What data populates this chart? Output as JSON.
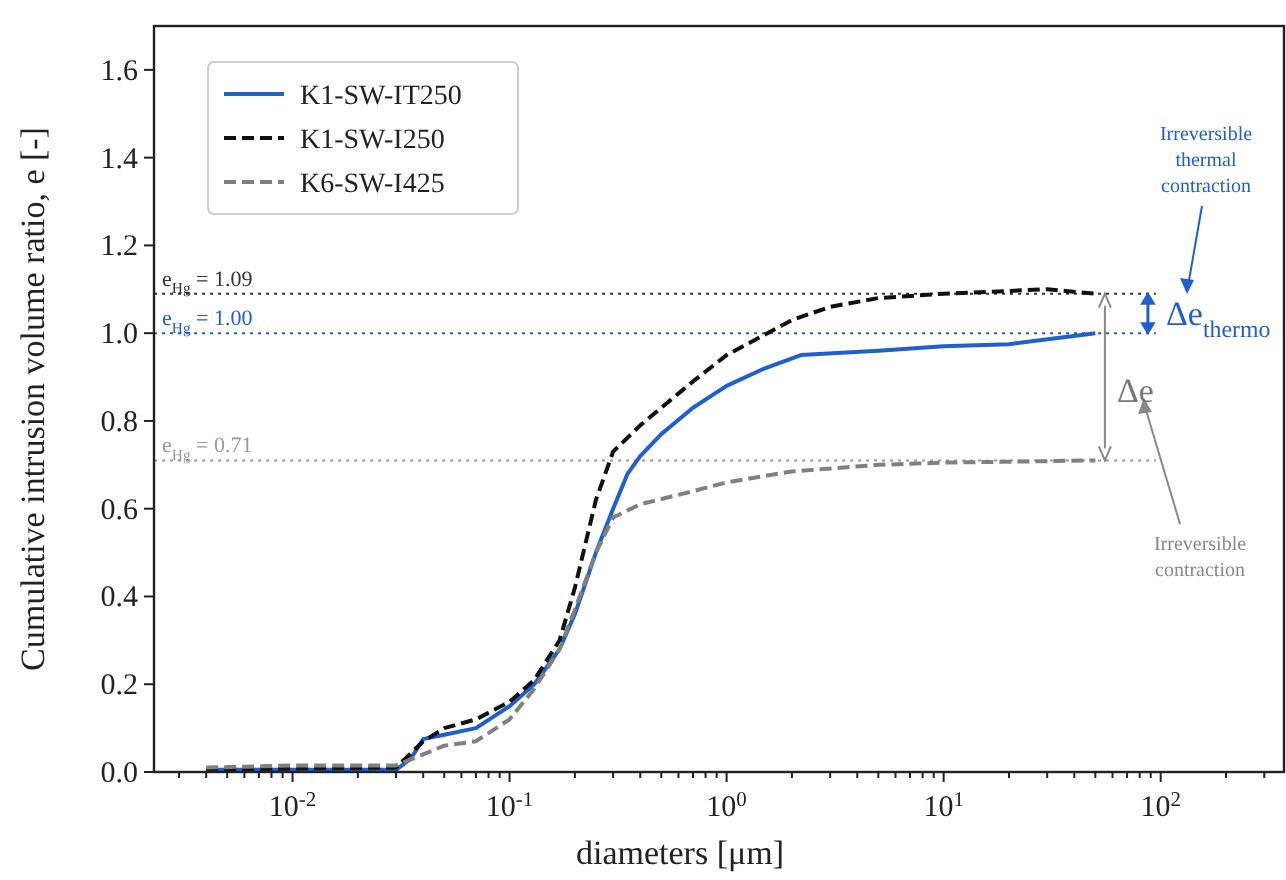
{
  "chart_data": {
    "type": "line",
    "xlabel": "diameters [μm]",
    "ylabel": "Cumulative intrusion volume ratio, e [-]",
    "log": "x",
    "xlim": [
      0.0023,
      370
    ],
    "ylim": [
      0,
      1.7
    ],
    "xticks": [
      {
        "value": 0.01,
        "label": "10$^{-2}$"
      },
      {
        "value": 0.1,
        "label": "10$^{-1}$"
      },
      {
        "value": 1,
        "label": "10$^{0}$"
      },
      {
        "value": 10,
        "label": "10$^{1}$"
      },
      {
        "value": 100,
        "label": "10$^{2}$"
      }
    ],
    "yticks": [
      {
        "value": 0,
        "label": "0.0"
      },
      {
        "value": 0.2,
        "label": "0.2"
      },
      {
        "value": 0.4,
        "label": "0.4"
      },
      {
        "value": 0.6,
        "label": "0.6"
      },
      {
        "value": 0.8,
        "label": "0.8"
      },
      {
        "value": 1,
        "label": "1.0"
      },
      {
        "value": 1.2,
        "label": "1.2"
      },
      {
        "value": 1.4,
        "label": "1.4"
      },
      {
        "value": 1.6,
        "label": "1.6"
      }
    ],
    "grid": false,
    "legend": "top left",
    "marker": "none",
    "series": [
      {
        "name": "K1-SW-IT250",
        "color": "#1f5fd0",
        "line_style": "solid",
        "x": [
          0.004,
          0.01,
          0.03,
          0.035,
          0.04,
          0.05,
          0.07,
          0.1,
          0.13,
          0.17,
          0.2,
          0.25,
          0.3,
          0.35,
          0.4,
          0.5,
          0.7,
          1,
          1.5,
          2.2,
          5,
          10,
          20,
          50
        ],
        "values": [
          0.005,
          0.005,
          0.005,
          0.03,
          0.075,
          0.085,
          0.1,
          0.15,
          0.2,
          0.28,
          0.36,
          0.5,
          0.6,
          0.68,
          0.72,
          0.77,
          0.83,
          0.88,
          0.92,
          0.95,
          0.96,
          0.97,
          0.975,
          1.0
        ]
      },
      {
        "name": "K1-SW-I250",
        "color": "#111111",
        "line_style": "dashed",
        "x": [
          0.004,
          0.01,
          0.03,
          0.04,
          0.05,
          0.07,
          0.1,
          0.13,
          0.17,
          0.2,
          0.25,
          0.3,
          0.4,
          0.5,
          0.7,
          1,
          2,
          3,
          5,
          10,
          30,
          50
        ],
        "values": [
          0.005,
          0.008,
          0.01,
          0.07,
          0.1,
          0.12,
          0.16,
          0.21,
          0.3,
          0.42,
          0.62,
          0.73,
          0.79,
          0.83,
          0.89,
          0.95,
          1.03,
          1.06,
          1.08,
          1.09,
          1.1,
          1.09
        ]
      },
      {
        "name": "K6-SW-I425",
        "color": "#808080",
        "line_style": "dashed",
        "x": [
          0.004,
          0.01,
          0.03,
          0.04,
          0.05,
          0.07,
          0.1,
          0.13,
          0.17,
          0.2,
          0.25,
          0.3,
          0.4,
          0.7,
          1,
          2,
          5,
          10,
          50
        ],
        "values": [
          0.01,
          0.015,
          0.015,
          0.04,
          0.06,
          0.07,
          0.12,
          0.19,
          0.28,
          0.37,
          0.5,
          0.58,
          0.61,
          0.64,
          0.66,
          0.685,
          0.7,
          0.705,
          0.71
        ]
      }
    ],
    "ref_lines": [
      {
        "axis": "y",
        "value": 1.09,
        "label": "e$_{Hg}$ = 1.09",
        "color": "#333333",
        "line_style": "dotted"
      },
      {
        "axis": "y",
        "value": 1.0,
        "label": "e$_{Hg}$ = 1.00",
        "color": "#1f5fd0",
        "line_style": "dotted"
      },
      {
        "axis": "y",
        "value": 0.71,
        "label": "e$_{Hg}$ = 0.71",
        "color": "#999999",
        "line_style": "dotted"
      }
    ],
    "annotations": [
      "Irreversible thermal contraction",
      "Δe$_{thermo}$",
      "Δe",
      "Irreversible contraction"
    ]
  }
}
